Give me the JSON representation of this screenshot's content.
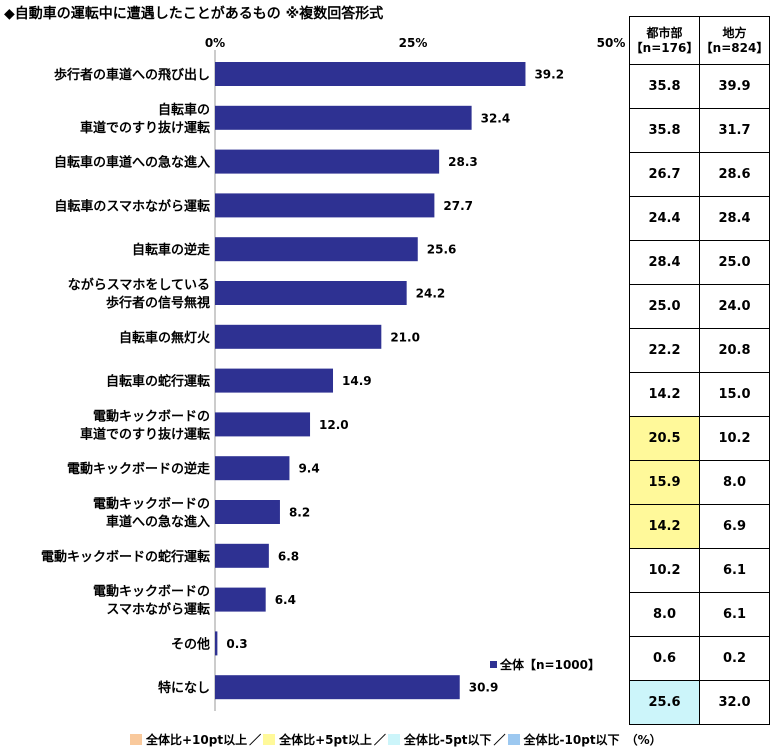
{
  "title": "◆自動車の運転中に遭遇したことがあるもの ※複数回答形式",
  "chart_data": {
    "type": "bar",
    "orientation": "horizontal",
    "categories": [
      [
        "歩行者の車道への飛び出し"
      ],
      [
        "自転車の",
        "車道でのすり抜け運転"
      ],
      [
        "自転車の車道への急な進入"
      ],
      [
        "自転車のスマホながら運転"
      ],
      [
        "自転車の逆走"
      ],
      [
        "ながらスマホをしている",
        "歩行者の信号無視"
      ],
      [
        "自転車の無灯火"
      ],
      [
        "自転車の蛇行運転"
      ],
      [
        "電動キックボードの",
        "車道でのすり抜け運転"
      ],
      [
        "電動キックボードの逆走"
      ],
      [
        "電動キックボードの",
        "車道への急な進入"
      ],
      [
        "電動キックボードの蛇行運転"
      ],
      [
        "電動キックボードの",
        "スマホながら運転"
      ],
      [
        "その他"
      ],
      [
        "特になし"
      ]
    ],
    "series": [
      {
        "name": "全体【n=1000】",
        "color": "#2E3192",
        "values": [
          39.2,
          32.4,
          28.3,
          27.7,
          25.6,
          24.2,
          21.0,
          14.9,
          12.0,
          9.4,
          8.2,
          6.8,
          6.4,
          0.3,
          30.9
        ]
      }
    ],
    "value_labels": [
      "39.2",
      "32.4",
      "28.3",
      "27.7",
      "25.6",
      "24.2",
      "21.0",
      "14.9",
      "12.0",
      "9.4",
      "8.2",
      "6.8",
      "6.4",
      "0.3",
      "30.9"
    ],
    "xlim": [
      0,
      50
    ],
    "ticks": [
      {
        "value": 0,
        "label": "0%"
      },
      {
        "value": 25,
        "label": "25%"
      },
      {
        "value": 50,
        "label": "50%"
      }
    ],
    "grid": false,
    "legend_position": "bottom-right"
  },
  "side_table": {
    "headers": [
      {
        "line1": "都市部",
        "line2": "【n=176】"
      },
      {
        "line1": "地方",
        "line2": "【n=824】"
      }
    ],
    "rows": [
      {
        "urban": "35.8",
        "rural": "39.9",
        "highlight": ""
      },
      {
        "urban": "35.8",
        "rural": "31.7",
        "highlight": ""
      },
      {
        "urban": "26.7",
        "rural": "28.6",
        "highlight": ""
      },
      {
        "urban": "24.4",
        "rural": "28.4",
        "highlight": ""
      },
      {
        "urban": "28.4",
        "rural": "25.0",
        "highlight": ""
      },
      {
        "urban": "25.0",
        "rural": "24.0",
        "highlight": ""
      },
      {
        "urban": "22.2",
        "rural": "20.8",
        "highlight": ""
      },
      {
        "urban": "14.2",
        "rural": "15.0",
        "highlight": ""
      },
      {
        "urban": "20.5",
        "rural": "10.2",
        "highlight": "#FFF99A"
      },
      {
        "urban": "15.9",
        "rural": "8.0",
        "highlight": "#FFF99A"
      },
      {
        "urban": "14.2",
        "rural": "6.9",
        "highlight": "#FFF99A"
      },
      {
        "urban": "10.2",
        "rural": "6.1",
        "highlight": ""
      },
      {
        "urban": "8.0",
        "rural": "6.1",
        "highlight": ""
      },
      {
        "urban": "0.6",
        "rural": "0.2",
        "highlight": ""
      },
      {
        "urban": "25.6",
        "rural": "32.0",
        "highlight": "#CCF5FA"
      }
    ]
  },
  "highlight_legend": [
    {
      "label": "全体比+10pt以上",
      "color": "#F9C99C"
    },
    {
      "label": "全体比+5pt以上",
      "color": "#FFF99A"
    },
    {
      "label": "全体比-5pt以下",
      "color": "#CCF5FA"
    },
    {
      "label": "全体比-10pt以下",
      "color": "#9CC8F0"
    }
  ],
  "legend_sep": "／",
  "unit_note": "（%）"
}
